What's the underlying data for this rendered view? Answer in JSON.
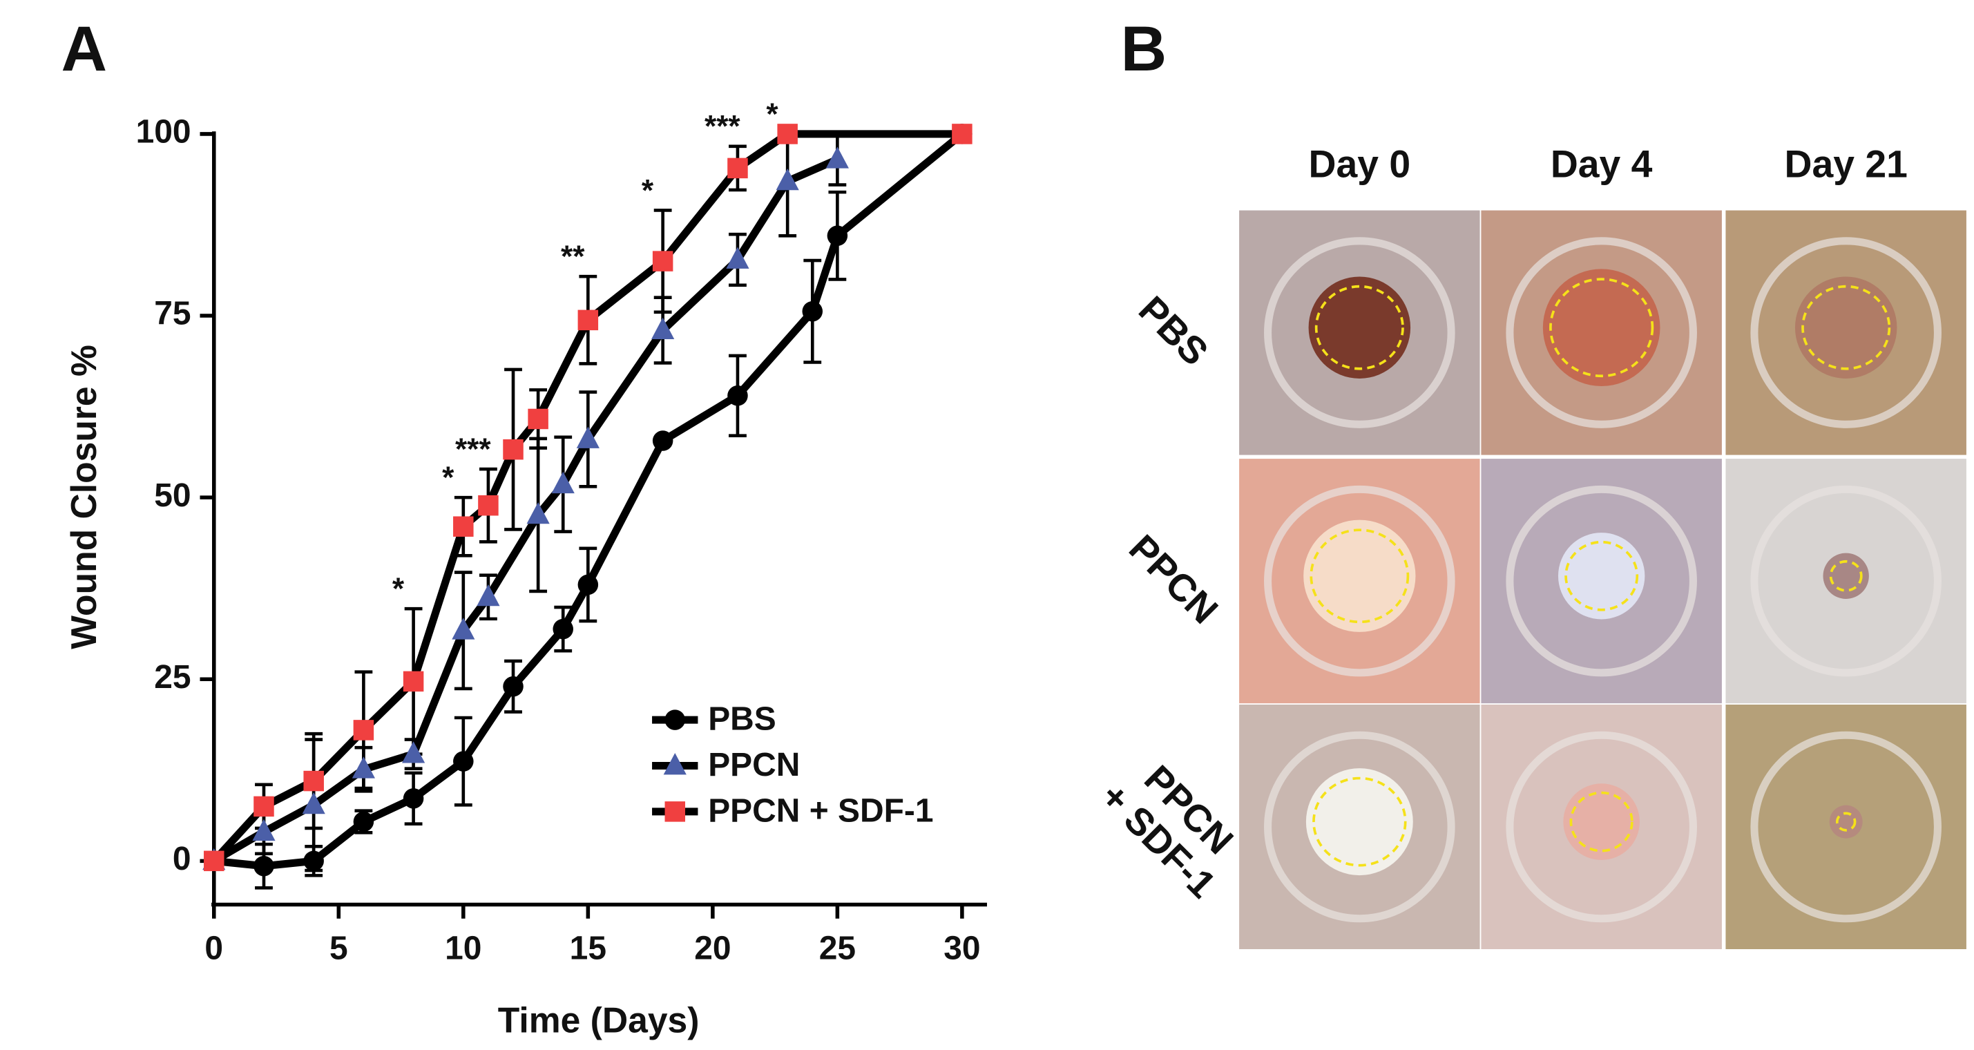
{
  "panel_a_label": "A",
  "chart_data": {
    "type": "line",
    "xlabel": "Time (Days)",
    "ylabel": "Wound Closure %",
    "xlim": [
      0,
      31
    ],
    "ylim": [
      -6,
      100
    ],
    "xticks": [
      0,
      5,
      10,
      15,
      20,
      25,
      30
    ],
    "yticks": [
      0,
      25,
      50,
      75,
      100
    ],
    "legend": "lower right",
    "series": [
      {
        "name": "PBS",
        "color": "#000000",
        "marker": "circle",
        "x": [
          0,
          2,
          4,
          6,
          8,
          10,
          12,
          14,
          15,
          18,
          21,
          24,
          25,
          30
        ],
        "values": [
          0,
          -0.7,
          0,
          5.4,
          8.6,
          13.7,
          24,
          31.9,
          38,
          57.8,
          64,
          75.6,
          86,
          100
        ],
        "errors": [
          0,
          3,
          2,
          1.5,
          3.5,
          6,
          3.5,
          3,
          5,
          0,
          5.5,
          7,
          6,
          0
        ]
      },
      {
        "name": "PPCN",
        "color": "#4b5fa8",
        "marker": "triangle",
        "x": [
          0,
          2,
          4,
          6,
          8,
          10,
          11,
          13,
          14,
          15,
          18,
          21,
          23,
          25
        ],
        "values": [
          0,
          4,
          7.7,
          12.6,
          14.7,
          31.7,
          36.3,
          47.6,
          51.8,
          58,
          73,
          82.7,
          93.5,
          96.5
        ],
        "errors": [
          0,
          3,
          9,
          3,
          2,
          8,
          3,
          10.5,
          6.5,
          6.5,
          4.5,
          3.5,
          7.5,
          3.5
        ]
      },
      {
        "name": "PPCN + SDF-1",
        "color": "#f04040",
        "marker": "square",
        "x": [
          0,
          2,
          4,
          6,
          8,
          10,
          11,
          12,
          13,
          15,
          18,
          21,
          23,
          30
        ],
        "values": [
          0,
          7.5,
          11,
          18,
          24.7,
          46,
          48.9,
          56.6,
          60.8,
          74.4,
          82.5,
          95.3,
          100,
          100
        ],
        "errors": [
          0,
          3,
          6.5,
          8,
          10,
          4,
          5,
          11,
          4,
          6,
          7,
          3,
          0,
          0
        ]
      }
    ],
    "annotations": [
      {
        "text": "*",
        "x": 8
      },
      {
        "text": "*",
        "x": 10
      },
      {
        "text": "***",
        "x": 11
      },
      {
        "text": "**",
        "x": 15
      },
      {
        "text": "*",
        "x": 18
      },
      {
        "text": "***",
        "x": 21
      },
      {
        "text": "*",
        "x": 23
      }
    ]
  },
  "panel_b": {
    "label": "B",
    "columns": [
      "Day 0",
      "Day 4",
      "Day 21"
    ],
    "rows": [
      [
        "PBS"
      ],
      [
        "PPCN"
      ],
      [
        "PPCN",
        "+ SDF-1"
      ]
    ]
  }
}
